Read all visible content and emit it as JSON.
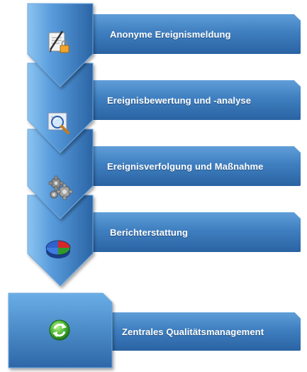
{
  "steps": [
    {
      "label": "Anonyme Ereignismeldung",
      "icon": "notepad-pen-lock-icon"
    },
    {
      "label": "Ereignisbewertung und -analyse",
      "icon": "magnifier-document-icon"
    },
    {
      "label": "Ereignisverfolgung und Maßnahme",
      "icon": "gears-icon"
    },
    {
      "label": "Berichterstattung",
      "icon": "pie-chart-icon"
    }
  ],
  "central": {
    "label": "Zentrales Qualitätsmanagement",
    "icon": "refresh-arrows-icon"
  },
  "colors": {
    "bar_light": "#5f9ed8",
    "bar_dark": "#2a63a3",
    "chevron_light": "#6aaee6",
    "chevron_dark": "#2d67a8",
    "text": "#ffffff"
  }
}
